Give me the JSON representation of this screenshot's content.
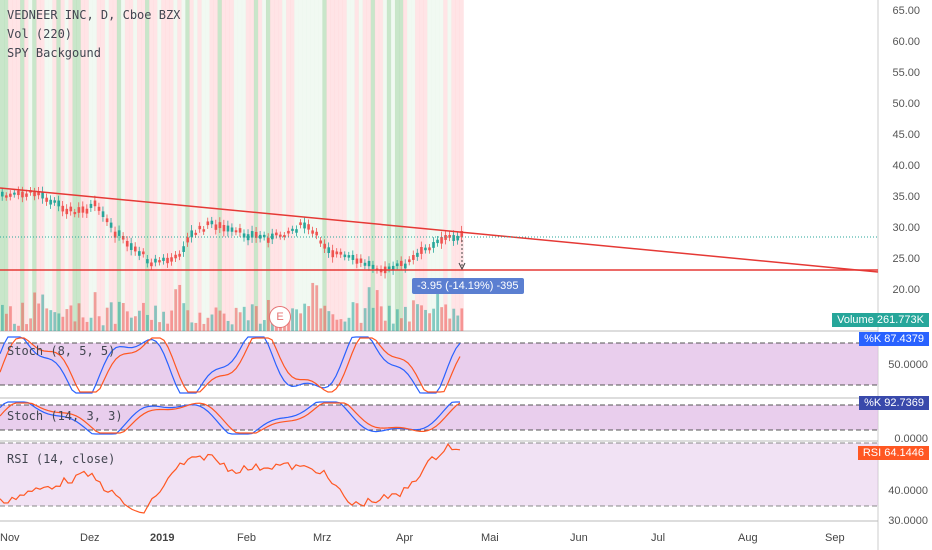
{
  "legend": {
    "symbol": "VEDNEER INC, D, Cboe BZX",
    "volume": "Vol (220)",
    "spy": "SPY Backgound",
    "stoch1": "Stoch (8, 5, 5)",
    "stoch2": "Stoch (14, 3, 3)",
    "rsi": "RSI (14, close)"
  },
  "price_axis": [
    "65.00",
    "60.00",
    "55.00",
    "50.00",
    "45.00",
    "40.00",
    "35.00",
    "30.00",
    "25.00",
    "20.00"
  ],
  "stoch1_axis": [
    "50.0000"
  ],
  "stoch2_axis": [
    "0.0000"
  ],
  "rsi_axis": [
    "40.0000",
    "30.0000"
  ],
  "x_axis": [
    "Nov",
    "Dez",
    "2019",
    "Feb",
    "Mrz",
    "Apr",
    "Mai",
    "Jun",
    "Jul",
    "Aug",
    "Sep"
  ],
  "measure_label": "-3.95 (-14.19%) -395",
  "earnings_marker": "E",
  "tags": {
    "volume": "Volume  261.773K",
    "stoch1": "%K  87.4379",
    "stoch2": "%K  92.7369",
    "rsi": "RSI  64.1446"
  },
  "colors": {
    "trendline": "#e53935",
    "up": "#26a69a",
    "down": "#ef5350",
    "k_line": "#2962ff",
    "d_line": "#ff5722",
    "rsi_line": "#ff5722",
    "osc_bg": "#e1bee7"
  }
}
